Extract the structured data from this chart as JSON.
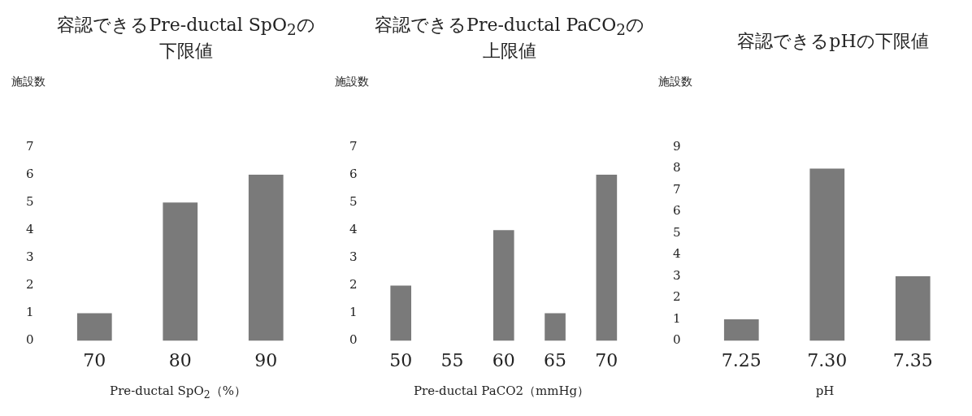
{
  "chart_data": [
    {
      "type": "bar",
      "title": "容認できるPre-ductal SpO$_{2}$の下限値",
      "ylabel": "施設数",
      "xlabel": "Pre-ductal SpO$_{2}$（%）",
      "categories": [
        "70",
        "80",
        "90"
      ],
      "values": [
        1,
        5,
        6
      ],
      "color": "#7a7a7a",
      "ylim": [
        0,
        7
      ],
      "yticks": [
        0,
        1,
        2,
        3,
        4,
        5,
        6,
        7
      ],
      "grid": false
    },
    {
      "type": "bar",
      "title": "容認できるPre-ductal PaCO$_{2}$の上限値",
      "ylabel": "施設数",
      "xlabel": "Pre-ductal PaCO2（mmHg）",
      "categories": [
        "50",
        "55",
        "60",
        "65",
        "70"
      ],
      "values": [
        2,
        0,
        4,
        1,
        6
      ],
      "color": "#7a7a7a",
      "ylim": [
        0,
        7
      ],
      "yticks": [
        0,
        1,
        2,
        3,
        4,
        5,
        6,
        7
      ],
      "grid": false
    },
    {
      "type": "bar",
      "title": "容認できるpHの下限値",
      "ylabel": "施設数",
      "xlabel": "pH",
      "categories": [
        "7.25",
        "7.30",
        "7.35"
      ],
      "values": [
        1,
        8,
        3
      ],
      "color": "#7a7a7a",
      "ylim": [
        0,
        9
      ],
      "yticks": [
        0,
        1,
        2,
        3,
        4,
        5,
        6,
        7,
        8,
        9
      ],
      "grid": false
    }
  ]
}
